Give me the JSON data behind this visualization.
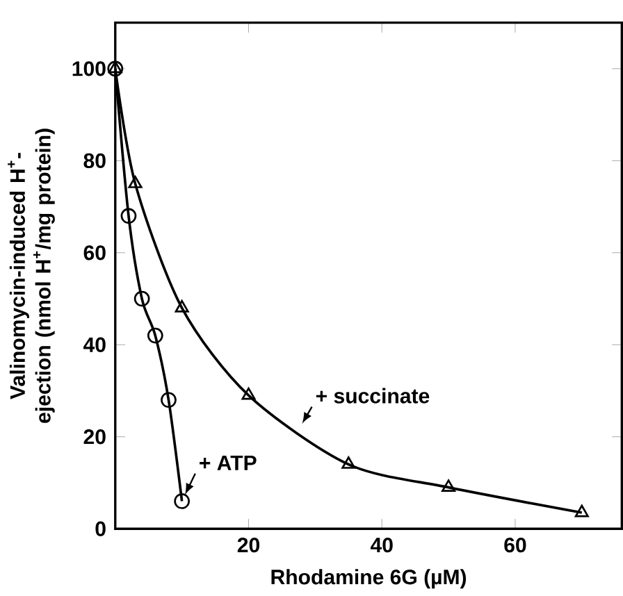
{
  "chart_data": {
    "type": "line",
    "xlabel": "Rhodamine 6G (µM)",
    "ylabel": "Valinomycin-induced H$^{+}$-ejection (nmol H$^{+}$/mg protein)",
    "xlim": [
      0,
      76
    ],
    "ylim": [
      0,
      110
    ],
    "xticks": [
      20,
      40,
      60
    ],
    "yticks": [
      0,
      20,
      40,
      60,
      80,
      100
    ],
    "series": [
      {
        "name": "+ ATP",
        "color": "#000000",
        "marker": "circle",
        "x": [
          0,
          2,
          4,
          6,
          8,
          10
        ],
        "values": [
          100,
          68,
          50,
          42,
          28,
          6
        ]
      },
      {
        "name": "+ succinate",
        "color": "#000000",
        "marker": "triangle",
        "x": [
          0,
          3,
          10,
          20,
          35,
          50,
          70
        ],
        "values": [
          100,
          75,
          48,
          29,
          14,
          9,
          3.5
        ]
      }
    ],
    "legend": false,
    "grid": false
  }
}
